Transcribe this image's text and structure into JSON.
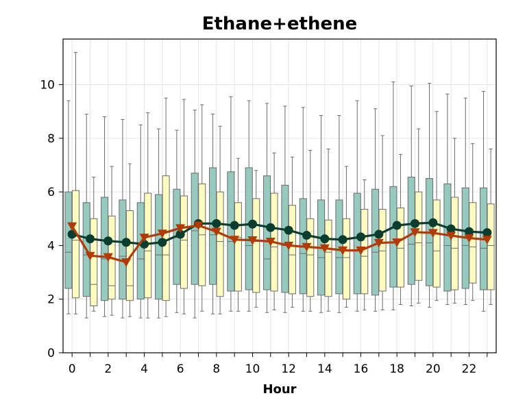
{
  "chart_data": {
    "type": "box",
    "title": "Ethane+ethene",
    "xlabel": "Hour",
    "ylabel": "",
    "xlim": [
      -0.5,
      23.5
    ],
    "ylim": [
      0,
      11.7
    ],
    "xticks": [
      0,
      2,
      4,
      6,
      8,
      10,
      12,
      14,
      16,
      18,
      20,
      22
    ],
    "yticks": [
      0,
      2,
      4,
      6,
      8,
      10
    ],
    "grid": true,
    "colors": {
      "box_a": "#96cabf",
      "box_b": "#fdfbc0",
      "box_edge": "#6b6b6b",
      "line_a": "#0b3d2e",
      "line_b": "#b13a07"
    },
    "hours": [
      0,
      1,
      2,
      3,
      4,
      5,
      6,
      7,
      8,
      9,
      10,
      11,
      12,
      13,
      14,
      15,
      16,
      17,
      18,
      19,
      20,
      21,
      22,
      23
    ],
    "box_series": [
      {
        "whisker_low": [
          1.45,
          1.3,
          1.35,
          1.3,
          1.3,
          1.3,
          1.5,
          1.3,
          1.45,
          1.55,
          1.55,
          1.5,
          1.5,
          1.55,
          1.5,
          1.5,
          1.55,
          1.55,
          1.6,
          1.75,
          1.7,
          1.8,
          1.8,
          1.55
        ],
        "q1": [
          2.4,
          2.1,
          1.95,
          2.0,
          2.0,
          2.0,
          2.55,
          2.55,
          2.55,
          2.3,
          2.35,
          2.35,
          2.25,
          2.2,
          2.15,
          2.2,
          2.2,
          2.15,
          2.45,
          2.55,
          2.5,
          2.3,
          2.4,
          2.35
        ],
        "median": [
          3.75,
          3.65,
          3.5,
          3.6,
          3.5,
          3.65,
          4.3,
          4.55,
          4.4,
          4.15,
          4.0,
          3.5,
          4.0,
          3.7,
          3.55,
          3.55,
          3.8,
          3.75,
          4.1,
          4.05,
          4.1,
          4.0,
          4.0,
          3.9
        ],
        "q3": [
          6.0,
          5.6,
          5.8,
          5.7,
          5.6,
          5.9,
          6.1,
          6.7,
          6.9,
          6.75,
          6.9,
          6.6,
          6.25,
          5.75,
          5.7,
          5.7,
          5.95,
          6.1,
          6.2,
          6.55,
          6.5,
          6.3,
          6.15,
          6.15
        ],
        "whisker_high": [
          9.4,
          8.9,
          8.8,
          8.7,
          8.5,
          8.35,
          8.3,
          9.05,
          8.9,
          9.55,
          9.4,
          9.3,
          9.2,
          9.15,
          8.85,
          8.85,
          9.4,
          9.1,
          10.1,
          9.95,
          10.05,
          9.65,
          9.5,
          9.75
        ]
      },
      {
        "whisker_low": [
          1.45,
          1.55,
          1.4,
          1.35,
          1.3,
          1.35,
          1.45,
          1.55,
          1.45,
          1.55,
          1.7,
          1.6,
          1.7,
          1.55,
          1.55,
          1.7,
          1.6,
          1.6,
          1.8,
          1.85,
          1.95,
          1.85,
          1.95,
          1.8
        ],
        "q1": [
          2.05,
          1.75,
          2.0,
          1.95,
          2.05,
          1.95,
          2.4,
          2.5,
          2.1,
          2.3,
          2.25,
          2.3,
          2.2,
          2.1,
          2.1,
          2.0,
          2.2,
          2.3,
          2.45,
          2.7,
          2.45,
          2.35,
          2.6,
          2.35
        ],
        "median": [
          4.2,
          2.55,
          2.5,
          2.5,
          3.8,
          3.65,
          4.2,
          4.4,
          4.15,
          4.3,
          4.15,
          3.95,
          3.65,
          3.65,
          3.75,
          3.55,
          3.6,
          3.8,
          3.9,
          4.1,
          3.8,
          3.9,
          3.95,
          4.0
        ],
        "q3": [
          6.05,
          5.0,
          5.1,
          5.3,
          5.95,
          6.6,
          5.85,
          6.3,
          6.0,
          5.6,
          5.75,
          5.95,
          5.5,
          5.0,
          4.95,
          5.0,
          5.35,
          5.35,
          5.4,
          6.0,
          5.7,
          5.8,
          5.6,
          5.55
        ],
        "whisker_high": [
          11.2,
          6.55,
          6.95,
          7.05,
          8.95,
          9.5,
          9.45,
          9.25,
          8.45,
          7.25,
          6.8,
          7.45,
          7.3,
          7.55,
          7.6,
          6.95,
          6.45,
          8.1,
          7.4,
          8.35,
          9.0,
          8.0,
          7.8,
          7.6
        ]
      }
    ],
    "series": [
      {
        "marker": "circle",
        "values": [
          4.42,
          4.25,
          4.17,
          4.12,
          4.05,
          4.12,
          4.42,
          4.82,
          4.82,
          4.75,
          4.8,
          4.67,
          4.57,
          4.38,
          4.25,
          4.22,
          4.32,
          4.42,
          4.75,
          4.82,
          4.85,
          4.62,
          4.52,
          4.48
        ]
      },
      {
        "marker": "triangle-down",
        "values": [
          4.72,
          3.62,
          3.57,
          3.38,
          4.3,
          4.45,
          4.65,
          4.75,
          4.52,
          4.22,
          4.2,
          4.15,
          4.0,
          3.95,
          3.9,
          3.82,
          3.82,
          4.1,
          4.12,
          4.5,
          4.47,
          4.37,
          4.28,
          4.22
        ]
      }
    ]
  }
}
